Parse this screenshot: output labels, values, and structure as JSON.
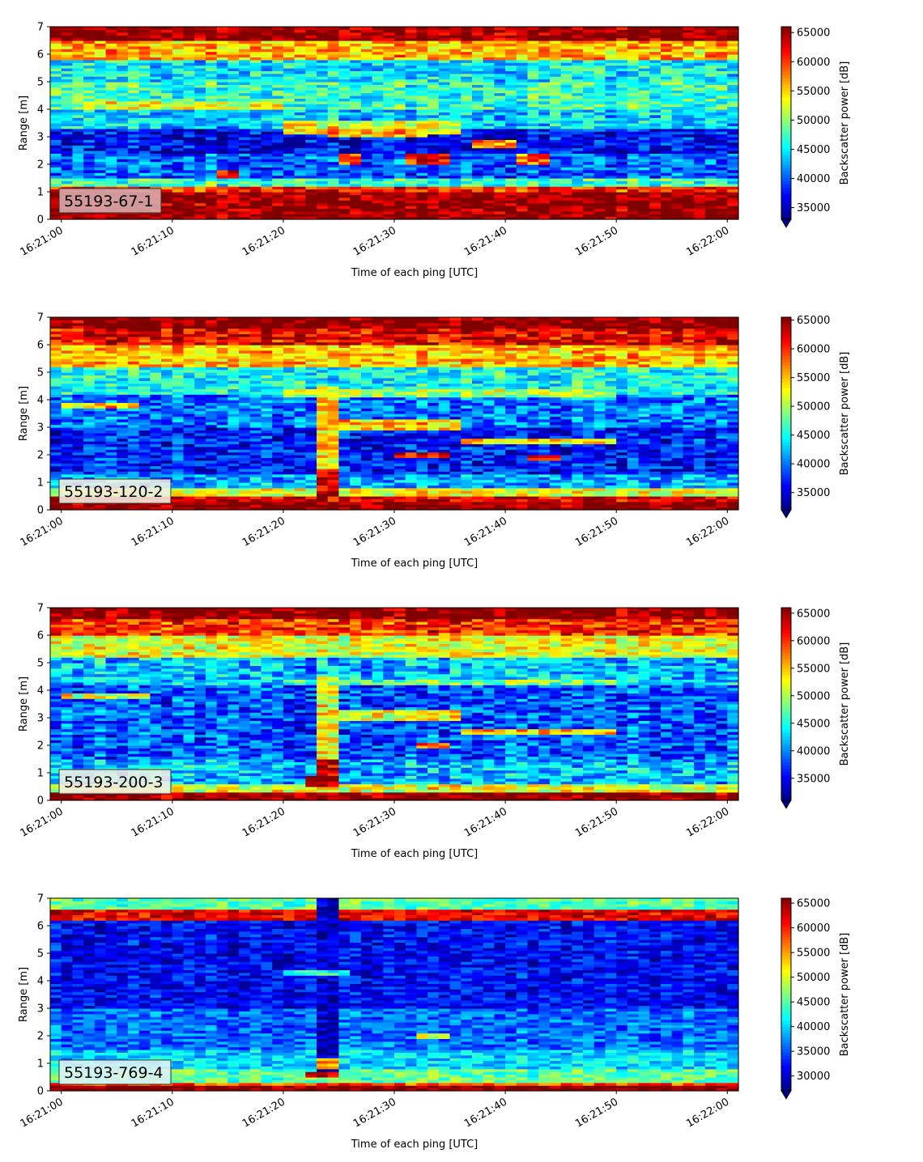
{
  "chart_data": [
    {
      "type": "heatmap",
      "label": "55193-67-1",
      "label_box_color": "#d8aeb0",
      "xlabel": "Time of each ping [UTC]",
      "ylabel": "Range [m]",
      "colorbar_label": "Backscatter power [dB]",
      "x_ticks": [
        "16:21:00",
        "16:21:10",
        "16:21:20",
        "16:21:30",
        "16:21:40",
        "16:21:50",
        "16:22:00"
      ],
      "y_ticks": [
        "0",
        "1",
        "2",
        "3",
        "4",
        "5",
        "6",
        "7"
      ],
      "ylim": [
        0,
        7
      ],
      "clim": [
        33000,
        66000
      ],
      "colorbar_ticks": [
        "35000",
        "40000",
        "45000",
        "50000",
        "55000",
        "60000",
        "65000"
      ],
      "colormap": "jet",
      "bands": [
        {
          "y": [
            0.0,
            0.25
          ],
          "v": 66000
        },
        {
          "y": [
            0.25,
            1.0
          ],
          "v": 65500
        },
        {
          "y": [
            1.0,
            1.25
          ],
          "v": 61000
        },
        {
          "y": [
            1.25,
            1.5
          ],
          "v": 47000
        },
        {
          "y": [
            1.5,
            2.4
          ],
          "v": 40000
        },
        {
          "y": [
            2.4,
            3.3
          ],
          "v": 37000
        },
        {
          "y": [
            3.3,
            4.0
          ],
          "v": 44000
        },
        {
          "y": [
            4.0,
            5.0
          ],
          "v": 47000
        },
        {
          "y": [
            5.0,
            5.8
          ],
          "v": 45000
        },
        {
          "y": [
            5.8,
            6.5
          ],
          "v": 56000
        },
        {
          "y": [
            6.5,
            7.0
          ],
          "v": 65500
        }
      ],
      "features": [
        {
          "t": [
            2,
            20
          ],
          "y": [
            4.0,
            4.3
          ],
          "v": 53000
        },
        {
          "t": [
            20,
            36
          ],
          "y": [
            3.1,
            3.6
          ],
          "v": 53000
        },
        {
          "t": [
            24,
            33
          ],
          "y": [
            3.0,
            3.3
          ],
          "v": 56000
        },
        {
          "t": [
            25,
            27
          ],
          "y": [
            2.0,
            2.4
          ],
          "v": 59000
        },
        {
          "t": [
            31,
            35
          ],
          "y": [
            2.0,
            2.4
          ],
          "v": 62000
        },
        {
          "t": [
            37,
            41
          ],
          "y": [
            2.6,
            2.9
          ],
          "v": 58000
        },
        {
          "t": [
            41,
            44
          ],
          "y": [
            2.0,
            2.4
          ],
          "v": 58000
        },
        {
          "t": [
            14.5,
            15.5
          ],
          "y": [
            1.5,
            1.8
          ],
          "v": 62000
        }
      ],
      "noise": 4500
    },
    {
      "type": "heatmap",
      "label": "55193-120-2",
      "label_box_color": "#f2efe4",
      "xlabel": "Time of each ping [UTC]",
      "ylabel": "Range [m]",
      "colorbar_label": "Backscatter power [dB]",
      "x_ticks": [
        "16:21:00",
        "16:21:10",
        "16:21:20",
        "16:21:30",
        "16:21:40",
        "16:21:50",
        "16:22:00"
      ],
      "y_ticks": [
        "0",
        "1",
        "2",
        "3",
        "4",
        "5",
        "6",
        "7"
      ],
      "ylim": [
        0,
        7
      ],
      "clim": [
        32000,
        65500
      ],
      "colorbar_ticks": [
        "35000",
        "40000",
        "45000",
        "50000",
        "55000",
        "60000",
        "65000"
      ],
      "colormap": "jet",
      "bands": [
        {
          "y": [
            0.0,
            0.35
          ],
          "v": 65500
        },
        {
          "y": [
            0.35,
            0.55
          ],
          "v": 63000
        },
        {
          "y": [
            0.55,
            0.8
          ],
          "v": 52000
        },
        {
          "y": [
            0.8,
            1.3
          ],
          "v": 42000
        },
        {
          "y": [
            1.3,
            3.0
          ],
          "v": 37000
        },
        {
          "y": [
            3.0,
            4.2
          ],
          "v": 40000
        },
        {
          "y": [
            4.2,
            5.2
          ],
          "v": 45000
        },
        {
          "y": [
            5.2,
            6.0
          ],
          "v": 55000
        },
        {
          "y": [
            6.0,
            6.6
          ],
          "v": 62000
        },
        {
          "y": [
            6.6,
            7.0
          ],
          "v": 65500
        }
      ],
      "features": [
        {
          "t": [
            23,
            24.5
          ],
          "y": [
            0.5,
            4.5
          ],
          "v": 55000
        },
        {
          "t": [
            23,
            24.5
          ],
          "y": [
            0.5,
            1.5
          ],
          "v": 64000
        },
        {
          "t": [
            0,
            7
          ],
          "y": [
            3.7,
            3.9
          ],
          "v": 55000
        },
        {
          "t": [
            24,
            36
          ],
          "y": [
            2.9,
            3.3
          ],
          "v": 55000
        },
        {
          "t": [
            36,
            50
          ],
          "y": [
            2.4,
            2.6
          ],
          "v": 54000
        },
        {
          "t": [
            30,
            35
          ],
          "y": [
            1.9,
            2.1
          ],
          "v": 62000
        },
        {
          "t": [
            42,
            45
          ],
          "y": [
            1.8,
            2.0
          ],
          "v": 62000
        },
        {
          "t": [
            20,
            50
          ],
          "y": [
            4.1,
            4.4
          ],
          "v": 50000
        }
      ],
      "noise": 4500
    },
    {
      "type": "heatmap",
      "label": "55193-200-3",
      "label_box_color": "#f2efe4",
      "xlabel": "Time of each ping [UTC]",
      "ylabel": "Range [m]",
      "colorbar_label": "Backscatter power [dB]",
      "x_ticks": [
        "16:21:00",
        "16:21:10",
        "16:21:20",
        "16:21:30",
        "16:21:40",
        "16:21:50",
        "16:22:00"
      ],
      "y_ticks": [
        "0",
        "1",
        "2",
        "3",
        "4",
        "5",
        "6",
        "7"
      ],
      "ylim": [
        0,
        7
      ],
      "clim": [
        31000,
        66000
      ],
      "colorbar_ticks": [
        "35000",
        "40000",
        "45000",
        "50000",
        "55000",
        "60000",
        "65000"
      ],
      "colormap": "jet",
      "bands": [
        {
          "y": [
            0.0,
            0.3
          ],
          "v": 66000
        },
        {
          "y": [
            0.3,
            0.6
          ],
          "v": 52000
        },
        {
          "y": [
            0.6,
            1.5
          ],
          "v": 42000
        },
        {
          "y": [
            1.5,
            3.0
          ],
          "v": 38000
        },
        {
          "y": [
            3.0,
            4.2
          ],
          "v": 38000
        },
        {
          "y": [
            4.2,
            5.2
          ],
          "v": 42000
        },
        {
          "y": [
            5.2,
            6.0
          ],
          "v": 52000
        },
        {
          "y": [
            6.0,
            6.6
          ],
          "v": 60000
        },
        {
          "y": [
            6.6,
            7.0
          ],
          "v": 66000
        }
      ],
      "features": [
        {
          "t": [
            22,
            25
          ],
          "y": [
            0.5,
            0.9
          ],
          "v": 66000
        },
        {
          "t": [
            23,
            24.5
          ],
          "y": [
            0.9,
            4.5
          ],
          "v": 52000
        },
        {
          "t": [
            23,
            24.5
          ],
          "y": [
            0.9,
            1.5
          ],
          "v": 63000
        },
        {
          "t": [
            0,
            8
          ],
          "y": [
            3.7,
            3.9
          ],
          "v": 52000
        },
        {
          "t": [
            24,
            36
          ],
          "y": [
            2.9,
            3.3
          ],
          "v": 53000
        },
        {
          "t": [
            36,
            50
          ],
          "y": [
            2.4,
            2.6
          ],
          "v": 55000
        },
        {
          "t": [
            32,
            35
          ],
          "y": [
            1.9,
            2.1
          ],
          "v": 60000
        },
        {
          "t": [
            20,
            50
          ],
          "y": [
            4.2,
            4.4
          ],
          "v": 48000
        }
      ],
      "noise": 5000
    },
    {
      "type": "heatmap",
      "label": "55193-769-4",
      "label_box_color": "#e3f2f2",
      "xlabel": "Time of each ping [UTC]",
      "ylabel": "Range [m]",
      "colorbar_label": "Backscatter power [dB]",
      "x_ticks": [
        "16:21:00",
        "16:21:10",
        "16:21:20",
        "16:21:30",
        "16:21:40",
        "16:21:50",
        "16:22:00"
      ],
      "y_ticks": [
        "0",
        "1",
        "2",
        "3",
        "4",
        "5",
        "6",
        "7"
      ],
      "ylim": [
        0,
        7
      ],
      "clim": [
        27000,
        66000
      ],
      "colorbar_ticks": [
        "30000",
        "35000",
        "40000",
        "45000",
        "50000",
        "55000",
        "60000",
        "65000"
      ],
      "colormap": "jet",
      "bands": [
        {
          "y": [
            0.0,
            0.2
          ],
          "v": 66000
        },
        {
          "y": [
            0.2,
            0.35
          ],
          "v": 58000
        },
        {
          "y": [
            0.35,
            0.8
          ],
          "v": 45000
        },
        {
          "y": [
            0.8,
            1.5
          ],
          "v": 40000
        },
        {
          "y": [
            1.5,
            3.0
          ],
          "v": 36000
        },
        {
          "y": [
            3.0,
            6.2
          ],
          "v": 32000
        },
        {
          "y": [
            6.2,
            6.6
          ],
          "v": 62000
        },
        {
          "y": [
            6.6,
            7.0
          ],
          "v": 45000
        }
      ],
      "features": [
        {
          "t": [
            23,
            24.5
          ],
          "y": [
            0.5,
            7.0
          ],
          "v": 29000
        },
        {
          "t": [
            22,
            24.5
          ],
          "y": [
            0.5,
            0.7
          ],
          "v": 62000
        },
        {
          "t": [
            23.5,
            24.5
          ],
          "y": [
            0.8,
            1.2
          ],
          "v": 55000
        },
        {
          "t": [
            20,
            26
          ],
          "y": [
            4.2,
            4.4
          ],
          "v": 43000
        },
        {
          "t": [
            32,
            35
          ],
          "y": [
            1.9,
            2.1
          ],
          "v": 50000
        }
      ],
      "noise": 4000
    }
  ]
}
